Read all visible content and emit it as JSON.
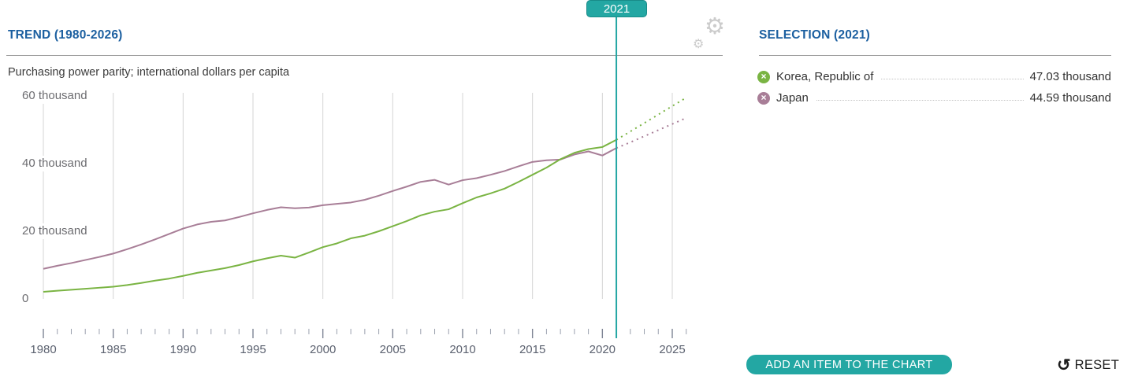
{
  "trend": {
    "title": "TREND (1980-2026)"
  },
  "selection": {
    "title": "SELECTION (2021)",
    "remove_glyph": "×",
    "items": [
      {
        "label": "Korea, Republic of",
        "value": "47.03 thousand",
        "color": "#7ab443",
        "icon": "remove-circle-x"
      },
      {
        "label": "Japan",
        "value": "44.59 thousand",
        "color": "#a87e97",
        "icon": "remove-circle-x"
      }
    ]
  },
  "actions": {
    "add_item": "ADD AN ITEM TO THE CHART",
    "reset": "RESET",
    "reset_glyph": "↺",
    "settings_icon": "gears"
  },
  "colors": {
    "teal": "#23a7a3",
    "header_blue": "#1b5fa0",
    "korea_green": "#7ab443",
    "japan_mauve": "#a87e97",
    "gridline": "#d4d4d4"
  },
  "chart_data": {
    "type": "line",
    "subtitle": "Purchasing power parity; international dollars per capita",
    "unit": "thousand international dollars per capita",
    "x_start": 1980,
    "x_end": 2026,
    "marker_year": 2021,
    "marker_label": "2021",
    "ylim": [
      0,
      60
    ],
    "grid": "vertical-only",
    "legend": "none",
    "y_ticks": [
      {
        "value": 0,
        "label": "0"
      },
      {
        "value": 20,
        "label": "20 thousand"
      },
      {
        "value": 40,
        "label": "40 thousand"
      },
      {
        "value": 60,
        "label": "60 thousand"
      }
    ],
    "x_ticks": [
      1980,
      1985,
      1990,
      1995,
      2000,
      2005,
      2010,
      2015,
      2020,
      2025
    ],
    "series": [
      {
        "id": "korea",
        "name": "Korea, Republic of",
        "color": "#7ab443",
        "start_year": 1980,
        "values": [
          2.1,
          2.4,
          2.7,
          3.0,
          3.3,
          3.6,
          4.1,
          4.7,
          5.4,
          6.0,
          6.8,
          7.7,
          8.4,
          9.1,
          10.0,
          11.1,
          12.0,
          12.8,
          12.2,
          13.7,
          15.3,
          16.4,
          17.9,
          18.7,
          20.0,
          21.5,
          23.0,
          24.7,
          25.8,
          26.5,
          28.3,
          30.0,
          31.2,
          32.6,
          34.6,
          36.7,
          38.8,
          41.3,
          43.2,
          44.3,
          44.9,
          47.03
        ],
        "value_2021": 47.03,
        "projection_start_year": 2022,
        "projection_values": [
          49.5,
          52.0,
          54.5,
          57.0,
          59.5
        ]
      },
      {
        "id": "japan",
        "name": "Japan",
        "color": "#a87e97",
        "start_year": 1980,
        "values": [
          8.9,
          9.8,
          10.6,
          11.5,
          12.4,
          13.4,
          14.7,
          16.1,
          17.6,
          19.2,
          20.8,
          22.0,
          22.8,
          23.2,
          24.2,
          25.3,
          26.3,
          27.1,
          26.8,
          27.0,
          27.7,
          28.1,
          28.5,
          29.3,
          30.5,
          31.9,
          33.2,
          34.6,
          35.2,
          33.8,
          35.1,
          35.7,
          36.7,
          37.8,
          39.2,
          40.5,
          41.0,
          41.2,
          42.7,
          43.6,
          42.4,
          44.59
        ],
        "value_2021": 44.59,
        "projection_start_year": 2022,
        "projection_values": [
          46.3,
          48.1,
          49.9,
          51.7,
          53.5
        ]
      }
    ]
  }
}
